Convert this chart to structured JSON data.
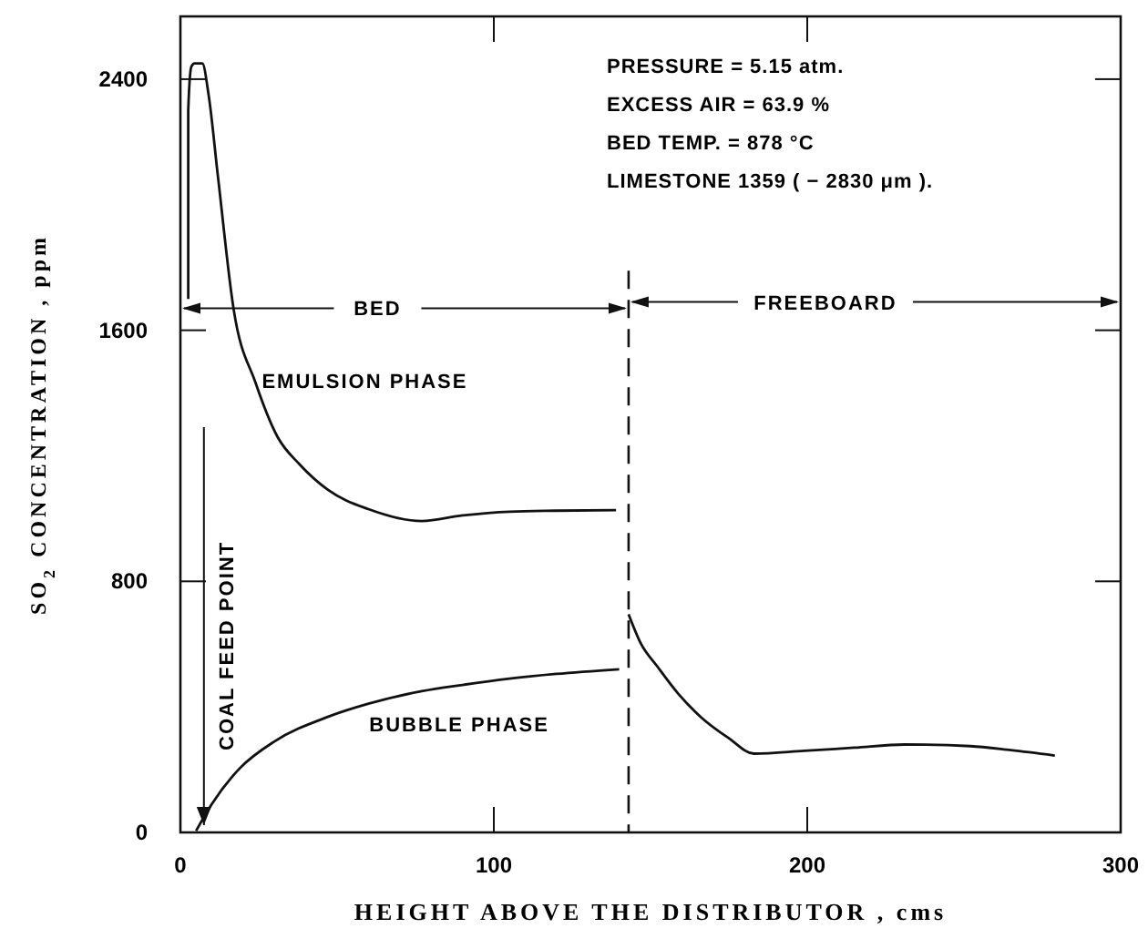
{
  "chart_data": {
    "type": "line",
    "xlabel": "HEIGHT ABOVE THE DISTRIBUTOR , cms",
    "ylabel": "SO$_{2}$ CONCENTRATION , ppm",
    "xlim": [
      0,
      300
    ],
    "ylim": [
      0,
      2600
    ],
    "xticks": [
      0,
      100,
      200,
      300
    ],
    "yticks": [
      0,
      800,
      1600,
      2400
    ],
    "grid": false,
    "marker": "none",
    "line_style": "solid",
    "series": [
      {
        "color": "#111111",
        "x": [
          2.5,
          2.5,
          3.5,
          4.5,
          7,
          9,
          12,
          17,
          24,
          31,
          38,
          47,
          60,
          77,
          90,
          105,
          120,
          139
        ],
        "values": [
          1700,
          2300,
          2440,
          2450,
          2450,
          2350,
          2088,
          1666,
          1432,
          1260,
          1173,
          1092,
          1030,
          992,
          1010,
          1022,
          1025,
          1027
        ]
      },
      {
        "color": "#111111",
        "x": [
          5,
          10,
          19,
          30,
          47,
          60,
          77,
          90,
          105,
          120,
          140
        ],
        "values": [
          5,
          90,
          205,
          290,
          368,
          410,
          450,
          470,
          490,
          505,
          520
        ]
      },
      {
        "color": "#111111",
        "x": [
          143,
          147,
          152,
          159,
          166,
          175,
          183,
          199,
          215,
          231,
          252,
          265,
          279
        ],
        "values": [
          695,
          600,
          531,
          440,
          368,
          300,
          251,
          260,
          270,
          280,
          275,
          262,
          245
        ]
      }
    ],
    "ref_lines": [
      {
        "axis": "x",
        "value": 143,
        "line_style": "dashed",
        "color": "#111111"
      }
    ],
    "annotations": [
      {
        "text": "BED",
        "x": 143,
        "y": 1670
      },
      {
        "text": "FREEBOARD",
        "x": 143,
        "y": 1690
      },
      "EMULSION PHASE",
      "BUBBLE PHASE",
      "COAL FEED POINT",
      "PRESSURE = 5.15  atm.",
      "EXCESS  AIR = 63.9 %",
      "BED TEMP. = 878 °C",
      "LIMESTONE 1359 ( − 2830 μm )."
    ]
  }
}
